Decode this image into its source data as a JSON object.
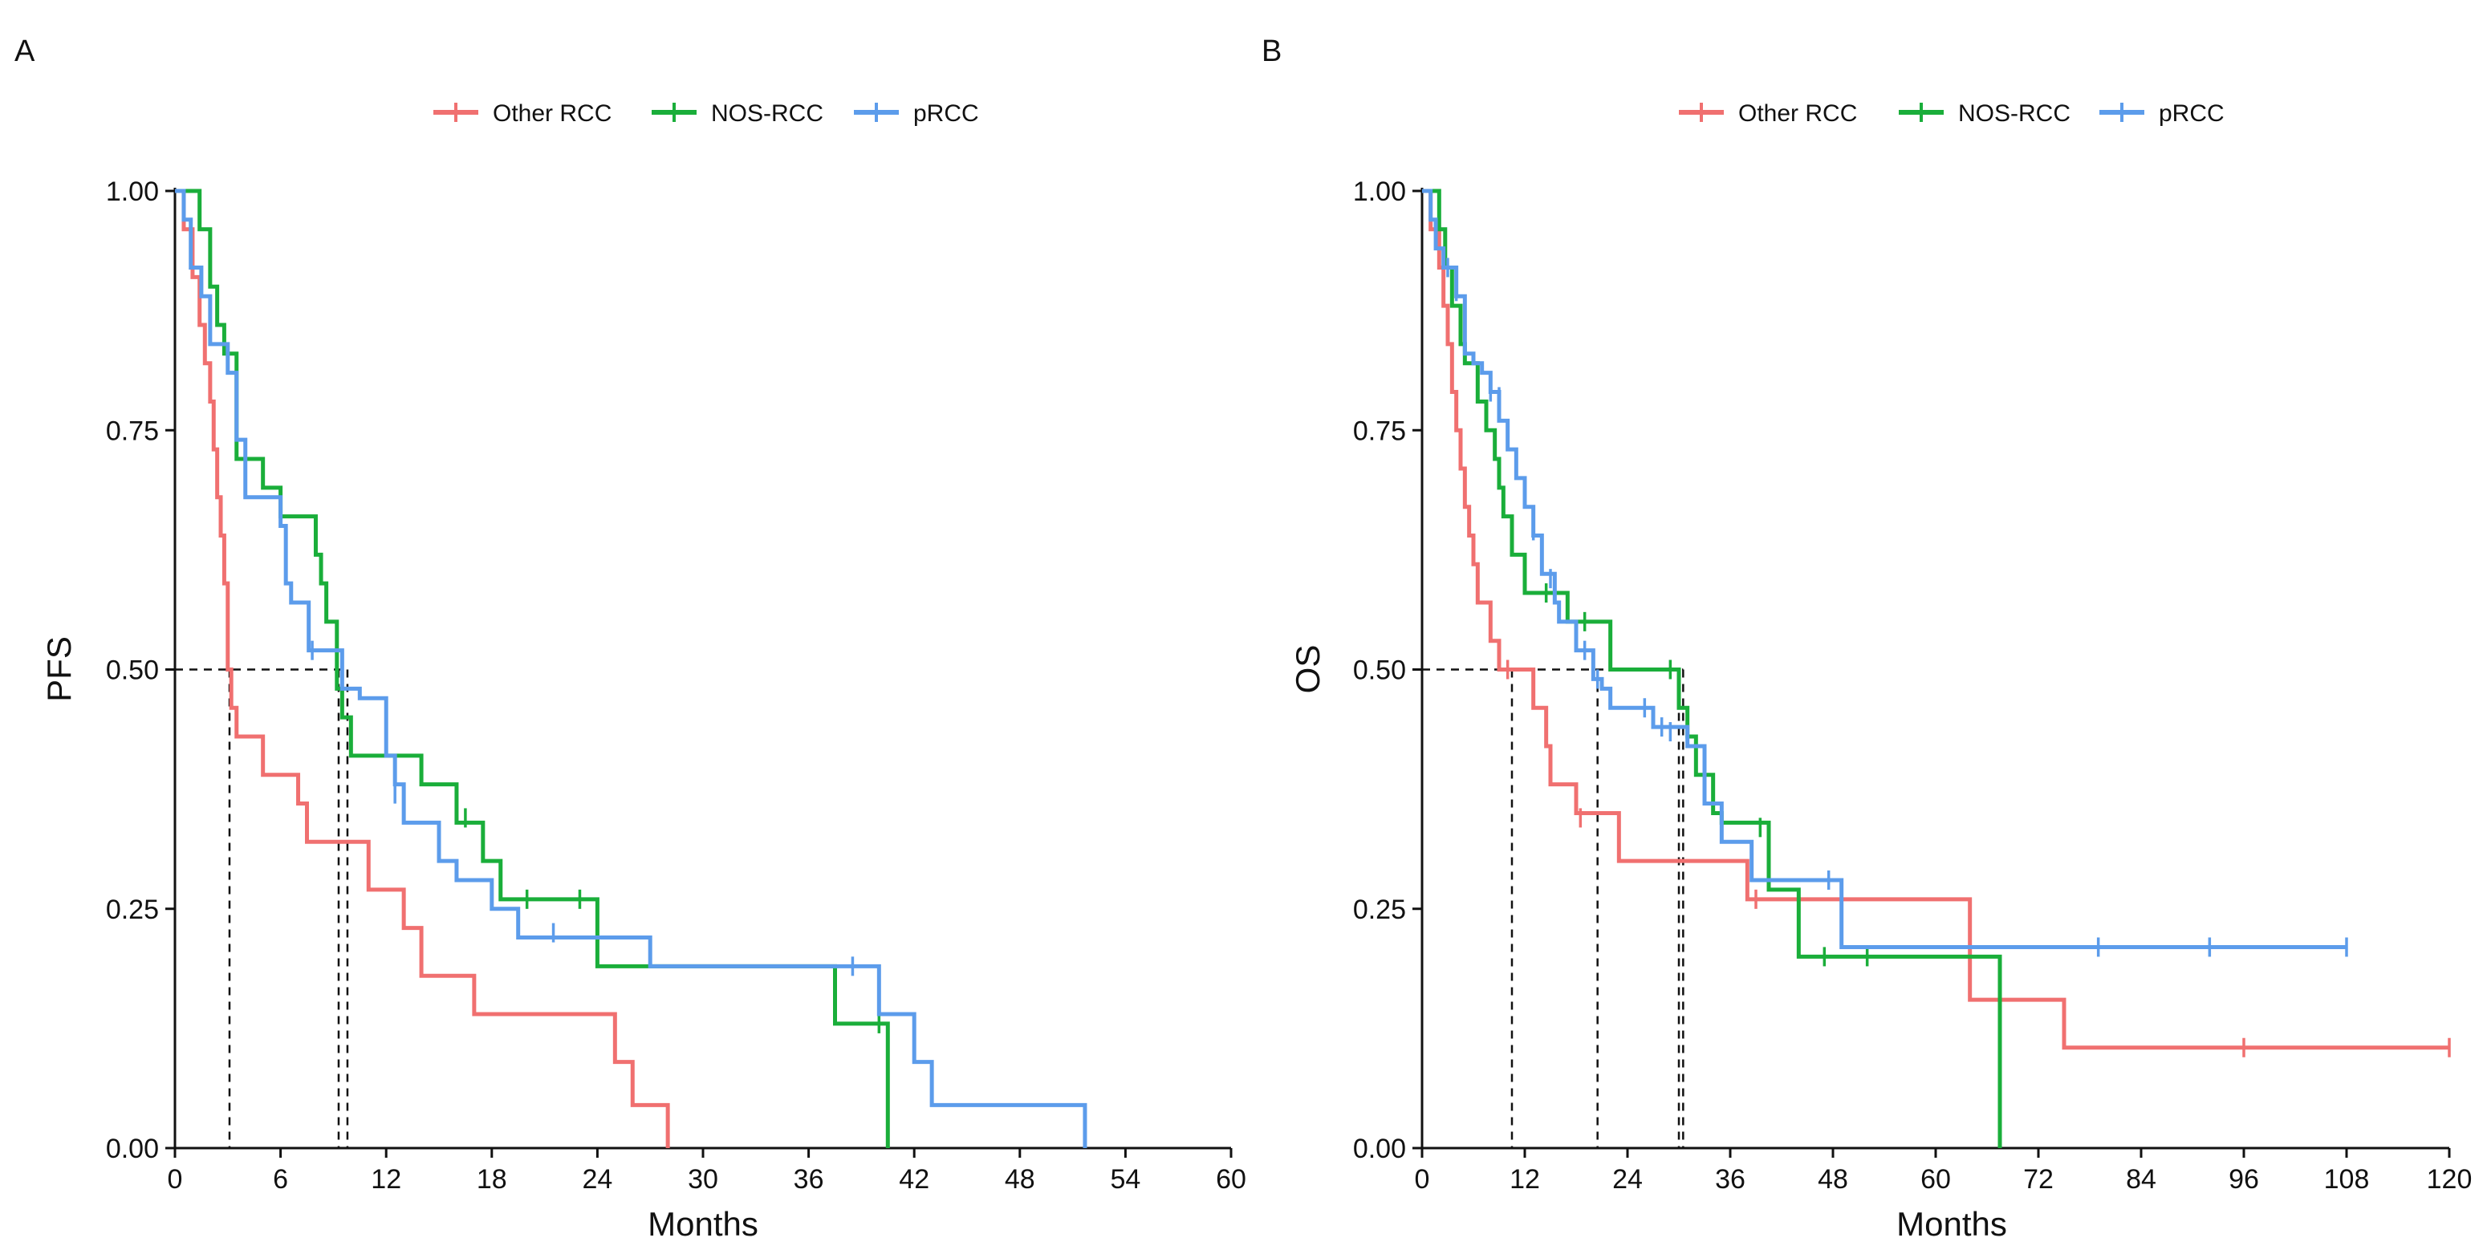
{
  "chart_data": [
    {
      "panel": "A",
      "type": "line",
      "subtype": "kaplan-meier",
      "xlabel": "Months",
      "ylabel": "PFS",
      "xlim": [
        0,
        60
      ],
      "ylim": [
        0,
        1
      ],
      "xticks": [
        "0",
        "6",
        "12",
        "18",
        "24",
        "30",
        "36",
        "42",
        "48",
        "54",
        "60"
      ],
      "yticks": [
        "0.00",
        "0.25",
        "0.50",
        "0.75",
        "1.00"
      ],
      "legend_position": "top",
      "legend": [
        "Other RCC",
        "NOS-RCC",
        "pRCC"
      ],
      "median_line_y": 0.5,
      "series": [
        {
          "name": "Other RCC",
          "color": "#F07070",
          "steps": [
            [
              0,
              1.0
            ],
            [
              0.5,
              0.96
            ],
            [
              1.0,
              0.91
            ],
            [
              1.4,
              0.86
            ],
            [
              1.7,
              0.82
            ],
            [
              2.0,
              0.78
            ],
            [
              2.2,
              0.73
            ],
            [
              2.4,
              0.68
            ],
            [
              2.6,
              0.64
            ],
            [
              2.8,
              0.59
            ],
            [
              3.0,
              0.5
            ],
            [
              3.2,
              0.46
            ],
            [
              3.5,
              0.43
            ],
            [
              5.0,
              0.39
            ],
            [
              7.0,
              0.36
            ],
            [
              7.5,
              0.32
            ],
            [
              11.0,
              0.27
            ],
            [
              13.0,
              0.23
            ],
            [
              14.0,
              0.18
            ],
            [
              17.0,
              0.14
            ],
            [
              25.0,
              0.09
            ],
            [
              26.0,
              0.045
            ],
            [
              28.0,
              0.0
            ]
          ],
          "end": 28.0,
          "censors": []
        },
        {
          "name": "NOS-RCC",
          "color": "#1AAE3A",
          "steps": [
            [
              0,
              1.0
            ],
            [
              1.4,
              0.96
            ],
            [
              2.0,
              0.9
            ],
            [
              2.4,
              0.86
            ],
            [
              2.8,
              0.83
            ],
            [
              3.5,
              0.72
            ],
            [
              5.0,
              0.69
            ],
            [
              6.0,
              0.66
            ],
            [
              8.0,
              0.62
            ],
            [
              8.3,
              0.59
            ],
            [
              8.6,
              0.55
            ],
            [
              9.2,
              0.48
            ],
            [
              9.5,
              0.45
            ],
            [
              10.0,
              0.41
            ],
            [
              14.0,
              0.38
            ],
            [
              16.0,
              0.34
            ],
            [
              17.5,
              0.3
            ],
            [
              18.5,
              0.26
            ],
            [
              24.0,
              0.19
            ],
            [
              37.5,
              0.13
            ],
            [
              40.5,
              0.0
            ]
          ],
          "end": 40.5,
          "censors": [
            [
              16.5,
              0.345
            ],
            [
              20.0,
              0.26
            ],
            [
              23.0,
              0.26
            ],
            [
              40.0,
              0.13
            ]
          ]
        },
        {
          "name": "pRCC",
          "color": "#5C9CEB",
          "steps": [
            [
              0,
              1.0
            ],
            [
              0.5,
              0.97
            ],
            [
              0.9,
              0.92
            ],
            [
              1.5,
              0.89
            ],
            [
              2.0,
              0.84
            ],
            [
              3.0,
              0.81
            ],
            [
              3.5,
              0.74
            ],
            [
              4.0,
              0.68
            ],
            [
              6.0,
              0.65
            ],
            [
              6.3,
              0.59
            ],
            [
              6.6,
              0.57
            ],
            [
              7.6,
              0.52
            ],
            [
              9.5,
              0.48
            ],
            [
              10.5,
              0.47
            ],
            [
              12.0,
              0.41
            ],
            [
              12.5,
              0.38
            ],
            [
              13.0,
              0.34
            ],
            [
              15.0,
              0.3
            ],
            [
              16.0,
              0.28
            ],
            [
              18.0,
              0.25
            ],
            [
              19.5,
              0.22
            ],
            [
              27.0,
              0.19
            ],
            [
              40.0,
              0.14
            ],
            [
              42.0,
              0.09
            ],
            [
              43.0,
              0.045
            ],
            [
              51.7,
              0.0
            ]
          ],
          "end": 51.7,
          "censors": [
            [
              1.5,
              0.9
            ],
            [
              3.5,
              0.77
            ],
            [
              7.8,
              0.52
            ],
            [
              12.5,
              0.37
            ],
            [
              21.5,
              0.225
            ],
            [
              38.5,
              0.19
            ]
          ]
        }
      ],
      "median_drops": [
        3.1,
        9.3,
        9.8
      ]
    },
    {
      "panel": "B",
      "type": "line",
      "subtype": "kaplan-meier",
      "xlabel": "Months",
      "ylabel": "OS",
      "xlim": [
        0,
        120
      ],
      "ylim": [
        0,
        1
      ],
      "xticks": [
        "0",
        "12",
        "24",
        "36",
        "48",
        "60",
        "72",
        "84",
        "96",
        "108",
        "120"
      ],
      "yticks": [
        "0.00",
        "0.25",
        "0.50",
        "0.75",
        "1.00"
      ],
      "legend_position": "top",
      "legend": [
        "Other RCC",
        "NOS-RCC",
        "pRCC"
      ],
      "median_line_y": 0.5,
      "series": [
        {
          "name": "Other RCC",
          "color": "#F07070",
          "steps": [
            [
              0,
              1.0
            ],
            [
              1.0,
              0.96
            ],
            [
              2.0,
              0.92
            ],
            [
              2.5,
              0.88
            ],
            [
              3.0,
              0.84
            ],
            [
              3.5,
              0.79
            ],
            [
              4.0,
              0.75
            ],
            [
              4.5,
              0.71
            ],
            [
              5.0,
              0.67
            ],
            [
              5.5,
              0.64
            ],
            [
              6.0,
              0.61
            ],
            [
              6.5,
              0.57
            ],
            [
              8.0,
              0.53
            ],
            [
              9.0,
              0.5
            ],
            [
              13.0,
              0.46
            ],
            [
              14.5,
              0.42
            ],
            [
              15.0,
              0.38
            ],
            [
              18.0,
              0.35
            ],
            [
              23.0,
              0.3
            ],
            [
              38.0,
              0.26
            ],
            [
              64.0,
              0.155
            ],
            [
              75.0,
              0.105
            ]
          ],
          "end": 120.0,
          "censors": [
            [
              10.0,
              0.5
            ],
            [
              18.5,
              0.345
            ],
            [
              39.0,
              0.26
            ],
            [
              96.0,
              0.105
            ],
            [
              120.0,
              0.105
            ]
          ]
        },
        {
          "name": "NOS-RCC",
          "color": "#1AAE3A",
          "steps": [
            [
              0,
              1.0
            ],
            [
              2.0,
              0.96
            ],
            [
              2.7,
              0.92
            ],
            [
              3.5,
              0.88
            ],
            [
              4.5,
              0.84
            ],
            [
              5.0,
              0.82
            ],
            [
              6.5,
              0.78
            ],
            [
              7.5,
              0.75
            ],
            [
              8.5,
              0.72
            ],
            [
              9.0,
              0.69
            ],
            [
              9.5,
              0.66
            ],
            [
              10.5,
              0.62
            ],
            [
              12.0,
              0.58
            ],
            [
              17.0,
              0.55
            ],
            [
              22.0,
              0.5
            ],
            [
              30.0,
              0.46
            ],
            [
              31.0,
              0.43
            ],
            [
              32.0,
              0.39
            ],
            [
              34.0,
              0.35
            ],
            [
              35.0,
              0.34
            ],
            [
              40.5,
              0.27
            ],
            [
              44.0,
              0.2
            ],
            [
              67.5,
              0.0
            ]
          ],
          "end": 67.5,
          "censors": [
            [
              14.5,
              0.58
            ],
            [
              19.0,
              0.55
            ],
            [
              29.0,
              0.5
            ],
            [
              39.5,
              0.335
            ],
            [
              47.0,
              0.2
            ],
            [
              52.0,
              0.2
            ]
          ]
        },
        {
          "name": "pRCC",
          "color": "#5C9CEB",
          "steps": [
            [
              0,
              1.0
            ],
            [
              1.0,
              0.97
            ],
            [
              1.6,
              0.94
            ],
            [
              2.5,
              0.92
            ],
            [
              4.0,
              0.89
            ],
            [
              5.0,
              0.83
            ],
            [
              6.0,
              0.82
            ],
            [
              7.0,
              0.81
            ],
            [
              8.0,
              0.79
            ],
            [
              9.0,
              0.76
            ],
            [
              10.0,
              0.73
            ],
            [
              11.0,
              0.7
            ],
            [
              12.0,
              0.67
            ],
            [
              13.0,
              0.64
            ],
            [
              14.0,
              0.6
            ],
            [
              15.5,
              0.57
            ],
            [
              16.0,
              0.55
            ],
            [
              18.0,
              0.52
            ],
            [
              20.0,
              0.49
            ],
            [
              21.0,
              0.48
            ],
            [
              22.0,
              0.46
            ],
            [
              27.0,
              0.44
            ],
            [
              31.0,
              0.42
            ],
            [
              33.0,
              0.36
            ],
            [
              35.0,
              0.32
            ],
            [
              38.5,
              0.28
            ],
            [
              49.0,
              0.21
            ]
          ],
          "end": 108.0,
          "censors": [
            [
              3.0,
              0.92
            ],
            [
              4.0,
              0.895
            ],
            [
              8.0,
              0.79
            ],
            [
              9.0,
              0.785
            ],
            [
              13.0,
              0.645
            ],
            [
              15.0,
              0.595
            ],
            [
              19.0,
              0.52
            ],
            [
              20.5,
              0.49
            ],
            [
              26.0,
              0.46
            ],
            [
              28.0,
              0.44
            ],
            [
              29.0,
              0.435
            ],
            [
              47.5,
              0.28
            ],
            [
              79.0,
              0.21
            ],
            [
              92.0,
              0.21
            ],
            [
              108.0,
              0.21
            ]
          ]
        }
      ],
      "median_drops": [
        10.5,
        20.5,
        30.0,
        30.5
      ]
    }
  ]
}
